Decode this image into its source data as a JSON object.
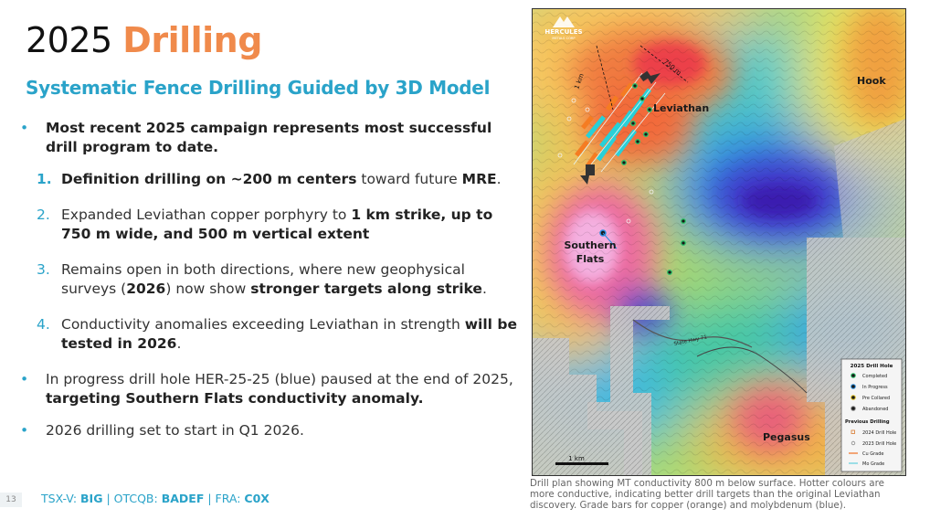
{
  "title": {
    "prefix": "2025 ",
    "accent": "Drilling"
  },
  "subtitle": "Systematic Fence Drilling Guided by 3D Model",
  "bullets": {
    "b1": {
      "bold": "Most recent 2025 campaign represents most successful drill program to date."
    },
    "n1": {
      "num": "1.",
      "bold": "Definition drilling on ~200 m centers",
      "text": " toward future ",
      "bold2": "MRE",
      "end": "."
    },
    "n2": {
      "num": "2.",
      "text": "Expanded Leviathan copper porphyry to ",
      "bold": "1 km strike, up to 750 m wide, and 500 m vertical extent"
    },
    "n3": {
      "num": "3.",
      "text": "Remains open in both directions, where new geophysical surveys (",
      "bold": "2026",
      "text2": ") now show ",
      "bold2": "stronger targets along strike",
      "end": "."
    },
    "n4": {
      "num": "4.",
      "text": "Conductivity anomalies exceeding Leviathan in strength ",
      "bold": "will be tested in 2026",
      "end": "."
    },
    "b2": {
      "text": "In progress drill hole HER-25-25 (blue) paused at the end of 2025, ",
      "bold": "targeting Southern Flats conductivity anomaly."
    },
    "b3": {
      "text": "2026 drilling set to start in Q1 2026."
    }
  },
  "footer": {
    "page_number": "13",
    "tsx_label": "TSX-V: ",
    "tsx_value": "BIG",
    "otc_label": " | OTCQB: ",
    "otc_value": "BADEF",
    "fra_label": " | FRA: ",
    "fra_value": "C0X"
  },
  "map": {
    "logo_name": "HERCULES",
    "logo_sub": "METALS CORP",
    "labels": {
      "leviathan": "Leviathan",
      "hook": "Hook",
      "southern_flats_1": "Southern",
      "southern_flats_2": "Flats",
      "pegasus": "Pegasus",
      "road": "State Hwy 71",
      "dim_1km": "1 km",
      "dim_750m": "750 m",
      "scale": "1 km"
    },
    "legend": {
      "title": "2025 Drill Hole",
      "items": [
        "Completed",
        "In Progress",
        "Pre Collared",
        "Abandoned"
      ],
      "prev_title": "Previous Drilling",
      "prev_items": [
        "2024 Drill Hole",
        "2023 Drill Hole",
        "Cu Grade",
        "Mo Grade"
      ]
    }
  },
  "caption": "Drill plan showing MT conductivity 800 m below surface. Hotter colours are more conductive, indicating better drill targets than the original Leviathan discovery. Grade bars for copper (orange) and molybdenum (blue).",
  "colors": {
    "accent_orange": "#f08a4b",
    "accent_blue": "#2aa3c9"
  }
}
